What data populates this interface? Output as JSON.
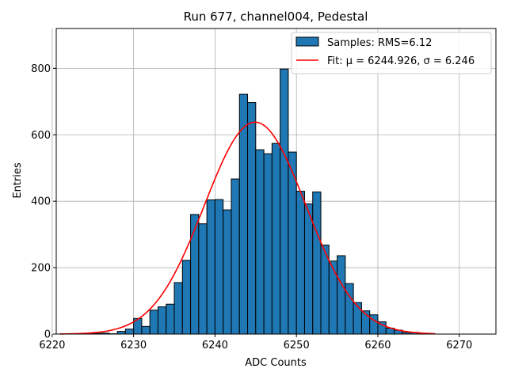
{
  "chart_data": {
    "type": "bar",
    "title": "Run 677, channel004, Pedestal",
    "xlabel": "ADC Counts",
    "ylabel": "Entries",
    "xlim": [
      6220.5,
      6274.5
    ],
    "ylim": [
      0,
      920
    ],
    "xticks": [
      6220,
      6230,
      6240,
      6250,
      6260,
      6270
    ],
    "yticks": [
      0,
      200,
      400,
      600,
      800
    ],
    "grid": true,
    "legend_placement": "upper right",
    "histogram": {
      "name": "Samples: RMS=6.12",
      "color": "#1f77b4",
      "edgecolor": "#000000",
      "bin_edges": [
        6221,
        6222,
        6223,
        6224,
        6225,
        6226,
        6227,
        6228,
        6229,
        6230,
        6231,
        6232,
        6233,
        6234,
        6235,
        6236,
        6237,
        6238,
        6239,
        6240,
        6241,
        6242,
        6243,
        6244,
        6245,
        6246,
        6247,
        6248,
        6249,
        6250,
        6251,
        6252,
        6253,
        6254,
        6255,
        6256,
        6257,
        6258,
        6259,
        6260,
        6261,
        6262,
        6263,
        6264,
        6265,
        6266,
        6267
      ],
      "counts": [
        1,
        0,
        0,
        1,
        2,
        3,
        1,
        8,
        15,
        47,
        23,
        72,
        82,
        90,
        155,
        222,
        360,
        332,
        404,
        405,
        374,
        467,
        722,
        697,
        555,
        543,
        574,
        798,
        548,
        430,
        392,
        428,
        268,
        220,
        236,
        152,
        95,
        70,
        58,
        37,
        18,
        12,
        5,
        5,
        1,
        1
      ]
    },
    "fit": {
      "name": "Fit: μ = 6244.926, σ = 6.246",
      "color": "#ff0000",
      "mu": 6244.926,
      "sigma": 6.246,
      "amplitude": 638,
      "x_range": [
        6221,
        6267
      ]
    }
  }
}
